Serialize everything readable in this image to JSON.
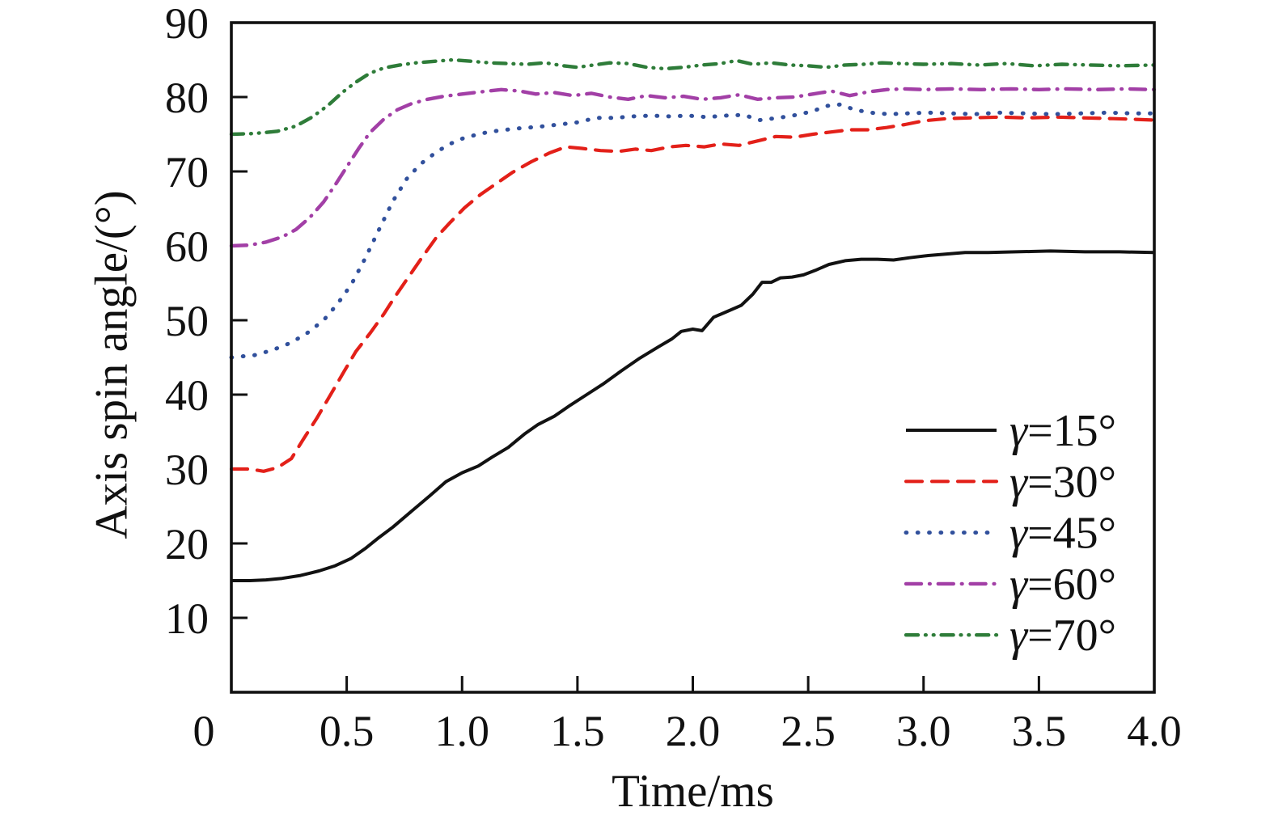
{
  "figure": {
    "x_axis_title": "Time/ms",
    "y_axis_title": "Axis spin angle/(°)",
    "frame_color": "#111111",
    "background": "#ffffff"
  },
  "chart_data": {
    "type": "line",
    "title": "",
    "xlabel": "Time/ms",
    "ylabel": "Axis spin angle/(°)",
    "xlim": [
      0,
      4.0
    ],
    "ylim": [
      0,
      90
    ],
    "grid": false,
    "legend_position": "inside lower right",
    "x_ticks": {
      "values": [
        0,
        0.5,
        1.0,
        1.5,
        2.0,
        2.5,
        3.0,
        3.5,
        4.0
      ],
      "labels": [
        "0",
        "0.5",
        "1.0",
        "1.5",
        "2.0",
        "2.5",
        "3.0",
        "3.5",
        "4.0"
      ]
    },
    "y_ticks": {
      "values": [
        10,
        20,
        30,
        40,
        50,
        60,
        70,
        80,
        90
      ],
      "labels": [
        "10",
        "20",
        "30",
        "40",
        "50",
        "60",
        "70",
        "80",
        "90"
      ]
    },
    "series": [
      {
        "name": "γ=15°",
        "slug": "gamma-15",
        "color": "#121212",
        "style": "solid",
        "points": [
          [
            0,
            15
          ],
          [
            0.08,
            15.0
          ],
          [
            0.15,
            15.1
          ],
          [
            0.22,
            15.3
          ],
          [
            0.3,
            15.7
          ],
          [
            0.38,
            16.3
          ],
          [
            0.45,
            17.0
          ],
          [
            0.52,
            18.0
          ],
          [
            0.58,
            19.3
          ],
          [
            0.64,
            20.8
          ],
          [
            0.7,
            22.2
          ],
          [
            0.78,
            24.3
          ],
          [
            0.86,
            26.4
          ],
          [
            0.93,
            28.3
          ],
          [
            1.0,
            29.5
          ],
          [
            1.07,
            30.4
          ],
          [
            1.13,
            31.6
          ],
          [
            1.2,
            32.9
          ],
          [
            1.27,
            34.7
          ],
          [
            1.33,
            36.0
          ],
          [
            1.4,
            37.1
          ],
          [
            1.47,
            38.6
          ],
          [
            1.54,
            40.0
          ],
          [
            1.61,
            41.4
          ],
          [
            1.69,
            43.2
          ],
          [
            1.77,
            44.9
          ],
          [
            1.85,
            46.4
          ],
          [
            1.91,
            47.5
          ],
          [
            1.95,
            48.5
          ],
          [
            2.0,
            48.8
          ],
          [
            2.04,
            48.6
          ],
          [
            2.09,
            50.4
          ],
          [
            2.15,
            51.2
          ],
          [
            2.21,
            52.0
          ],
          [
            2.26,
            53.5
          ],
          [
            2.3,
            55.1
          ],
          [
            2.34,
            55.1
          ],
          [
            2.38,
            55.7
          ],
          [
            2.43,
            55.8
          ],
          [
            2.48,
            56.1
          ],
          [
            2.53,
            56.7
          ],
          [
            2.59,
            57.5
          ],
          [
            2.66,
            58.0
          ],
          [
            2.73,
            58.2
          ],
          [
            2.8,
            58.2
          ],
          [
            2.87,
            58.1
          ],
          [
            2.94,
            58.4
          ],
          [
            3.02,
            58.7
          ],
          [
            3.1,
            58.9
          ],
          [
            3.18,
            59.1
          ],
          [
            3.28,
            59.1
          ],
          [
            3.4,
            59.2
          ],
          [
            3.55,
            59.3
          ],
          [
            3.7,
            59.2
          ],
          [
            3.85,
            59.2
          ],
          [
            4.0,
            59.1
          ]
        ]
      },
      {
        "name": "γ=30°",
        "slug": "gamma-30",
        "color": "#e32019",
        "style": "dashed",
        "points": [
          [
            0,
            30
          ],
          [
            0.08,
            30.0
          ],
          [
            0.14,
            29.7
          ],
          [
            0.2,
            30.2
          ],
          [
            0.26,
            31.4
          ],
          [
            0.31,
            33.9
          ],
          [
            0.37,
            36.8
          ],
          [
            0.43,
            40.0
          ],
          [
            0.49,
            43.2
          ],
          [
            0.54,
            45.8
          ],
          [
            0.6,
            48.2
          ],
          [
            0.66,
            50.8
          ],
          [
            0.71,
            53.2
          ],
          [
            0.77,
            55.9
          ],
          [
            0.83,
            58.6
          ],
          [
            0.89,
            61.2
          ],
          [
            0.95,
            63.2
          ],
          [
            1.01,
            65.1
          ],
          [
            1.08,
            66.9
          ],
          [
            1.15,
            68.4
          ],
          [
            1.22,
            69.9
          ],
          [
            1.3,
            71.3
          ],
          [
            1.38,
            72.5
          ],
          [
            1.45,
            73.3
          ],
          [
            1.52,
            73.1
          ],
          [
            1.6,
            72.8
          ],
          [
            1.68,
            72.7
          ],
          [
            1.75,
            73.0
          ],
          [
            1.82,
            72.8
          ],
          [
            1.9,
            73.3
          ],
          [
            1.97,
            73.5
          ],
          [
            2.05,
            73.3
          ],
          [
            2.12,
            73.7
          ],
          [
            2.2,
            73.5
          ],
          [
            2.28,
            74.1
          ],
          [
            2.36,
            74.7
          ],
          [
            2.44,
            74.6
          ],
          [
            2.52,
            75.0
          ],
          [
            2.6,
            75.3
          ],
          [
            2.68,
            75.6
          ],
          [
            2.76,
            75.6
          ],
          [
            2.84,
            75.9
          ],
          [
            2.92,
            76.3
          ],
          [
            3.0,
            76.8
          ],
          [
            3.1,
            77.1
          ],
          [
            3.2,
            77.2
          ],
          [
            3.33,
            77.3
          ],
          [
            3.45,
            77.2
          ],
          [
            3.58,
            77.3
          ],
          [
            3.7,
            77.2
          ],
          [
            3.82,
            77.1
          ],
          [
            3.92,
            77.0
          ],
          [
            4.0,
            76.9
          ]
        ]
      },
      {
        "name": "γ=45°",
        "slug": "gamma-45",
        "color": "#31509c",
        "style": "dotted",
        "points": [
          [
            0,
            45
          ],
          [
            0.1,
            45.3
          ],
          [
            0.18,
            46.0
          ],
          [
            0.26,
            47.0
          ],
          [
            0.33,
            48.3
          ],
          [
            0.4,
            50.0
          ],
          [
            0.46,
            52.2
          ],
          [
            0.52,
            54.8
          ],
          [
            0.58,
            58.3
          ],
          [
            0.64,
            62.2
          ],
          [
            0.7,
            66.0
          ],
          [
            0.76,
            69.0
          ],
          [
            0.82,
            71.0
          ],
          [
            0.88,
            72.4
          ],
          [
            0.94,
            73.6
          ],
          [
            1.0,
            74.4
          ],
          [
            1.08,
            75.1
          ],
          [
            1.16,
            75.5
          ],
          [
            1.25,
            75.8
          ],
          [
            1.33,
            76.0
          ],
          [
            1.42,
            76.3
          ],
          [
            1.5,
            76.6
          ],
          [
            1.58,
            77.2
          ],
          [
            1.66,
            77.2
          ],
          [
            1.74,
            77.4
          ],
          [
            1.82,
            77.5
          ],
          [
            1.9,
            77.4
          ],
          [
            1.98,
            77.5
          ],
          [
            2.06,
            77.3
          ],
          [
            2.14,
            77.5
          ],
          [
            2.22,
            77.6
          ],
          [
            2.29,
            76.9
          ],
          [
            2.37,
            77.2
          ],
          [
            2.45,
            77.6
          ],
          [
            2.52,
            78.1
          ],
          [
            2.58,
            78.8
          ],
          [
            2.64,
            79.0
          ],
          [
            2.7,
            78.3
          ],
          [
            2.77,
            77.9
          ],
          [
            2.85,
            77.7
          ],
          [
            2.93,
            77.8
          ],
          [
            3.02,
            77.9
          ],
          [
            3.12,
            77.8
          ],
          [
            3.22,
            77.7
          ],
          [
            3.33,
            77.9
          ],
          [
            3.44,
            77.8
          ],
          [
            3.56,
            77.7
          ],
          [
            3.68,
            77.8
          ],
          [
            3.8,
            77.9
          ],
          [
            3.9,
            77.8
          ],
          [
            4.0,
            77.8
          ]
        ]
      },
      {
        "name": "γ=60°",
        "slug": "gamma-60",
        "color": "#a23fa6",
        "style": "dashdot",
        "points": [
          [
            0,
            60
          ],
          [
            0.08,
            60.1
          ],
          [
            0.15,
            60.5
          ],
          [
            0.22,
            61.2
          ],
          [
            0.28,
            62.2
          ],
          [
            0.34,
            63.8
          ],
          [
            0.4,
            65.9
          ],
          [
            0.45,
            68.2
          ],
          [
            0.5,
            70.6
          ],
          [
            0.55,
            73.0
          ],
          [
            0.6,
            75.2
          ],
          [
            0.66,
            77.0
          ],
          [
            0.72,
            78.3
          ],
          [
            0.78,
            79.1
          ],
          [
            0.85,
            79.7
          ],
          [
            0.92,
            80.1
          ],
          [
            1.0,
            80.4
          ],
          [
            1.08,
            80.7
          ],
          [
            1.17,
            81.0
          ],
          [
            1.25,
            80.8
          ],
          [
            1.32,
            80.4
          ],
          [
            1.4,
            80.6
          ],
          [
            1.48,
            80.2
          ],
          [
            1.56,
            80.5
          ],
          [
            1.64,
            80.0
          ],
          [
            1.72,
            79.7
          ],
          [
            1.8,
            80.2
          ],
          [
            1.88,
            79.9
          ],
          [
            1.96,
            80.1
          ],
          [
            2.04,
            79.7
          ],
          [
            2.12,
            79.9
          ],
          [
            2.2,
            80.3
          ],
          [
            2.28,
            79.7
          ],
          [
            2.36,
            79.9
          ],
          [
            2.44,
            80.0
          ],
          [
            2.52,
            80.4
          ],
          [
            2.6,
            80.8
          ],
          [
            2.68,
            80.2
          ],
          [
            2.76,
            80.7
          ],
          [
            2.84,
            81.0
          ],
          [
            2.92,
            81.1
          ],
          [
            3.0,
            81.0
          ],
          [
            3.12,
            81.1
          ],
          [
            3.25,
            81.0
          ],
          [
            3.38,
            81.1
          ],
          [
            3.5,
            81.0
          ],
          [
            3.62,
            81.1
          ],
          [
            3.75,
            81.0
          ],
          [
            3.88,
            81.1
          ],
          [
            4.0,
            81.0
          ]
        ]
      },
      {
        "name": "γ=70°",
        "slug": "gamma-70",
        "color": "#2e7c39",
        "style": "dashdotdot",
        "points": [
          [
            0,
            75
          ],
          [
            0.1,
            75.1
          ],
          [
            0.2,
            75.4
          ],
          [
            0.28,
            76.1
          ],
          [
            0.35,
            77.3
          ],
          [
            0.42,
            78.9
          ],
          [
            0.48,
            80.6
          ],
          [
            0.54,
            82.0
          ],
          [
            0.6,
            83.2
          ],
          [
            0.66,
            83.9
          ],
          [
            0.73,
            84.3
          ],
          [
            0.8,
            84.6
          ],
          [
            0.88,
            84.8
          ],
          [
            0.96,
            85.0
          ],
          [
            1.04,
            84.8
          ],
          [
            1.12,
            84.6
          ],
          [
            1.2,
            84.5
          ],
          [
            1.28,
            84.4
          ],
          [
            1.36,
            84.6
          ],
          [
            1.44,
            84.2
          ],
          [
            1.5,
            84.0
          ],
          [
            1.57,
            84.3
          ],
          [
            1.64,
            84.6
          ],
          [
            1.72,
            84.5
          ],
          [
            1.8,
            84.0
          ],
          [
            1.88,
            83.8
          ],
          [
            1.96,
            84.0
          ],
          [
            2.04,
            84.3
          ],
          [
            2.12,
            84.5
          ],
          [
            2.19,
            84.9
          ],
          [
            2.26,
            84.4
          ],
          [
            2.34,
            84.6
          ],
          [
            2.42,
            84.3
          ],
          [
            2.5,
            84.2
          ],
          [
            2.58,
            84.0
          ],
          [
            2.66,
            84.3
          ],
          [
            2.74,
            84.4
          ],
          [
            2.82,
            84.6
          ],
          [
            2.9,
            84.5
          ],
          [
            3.0,
            84.4
          ],
          [
            3.12,
            84.5
          ],
          [
            3.24,
            84.3
          ],
          [
            3.36,
            84.5
          ],
          [
            3.48,
            84.2
          ],
          [
            3.6,
            84.4
          ],
          [
            3.72,
            84.3
          ],
          [
            3.85,
            84.2
          ],
          [
            4.0,
            84.3
          ]
        ]
      }
    ]
  }
}
